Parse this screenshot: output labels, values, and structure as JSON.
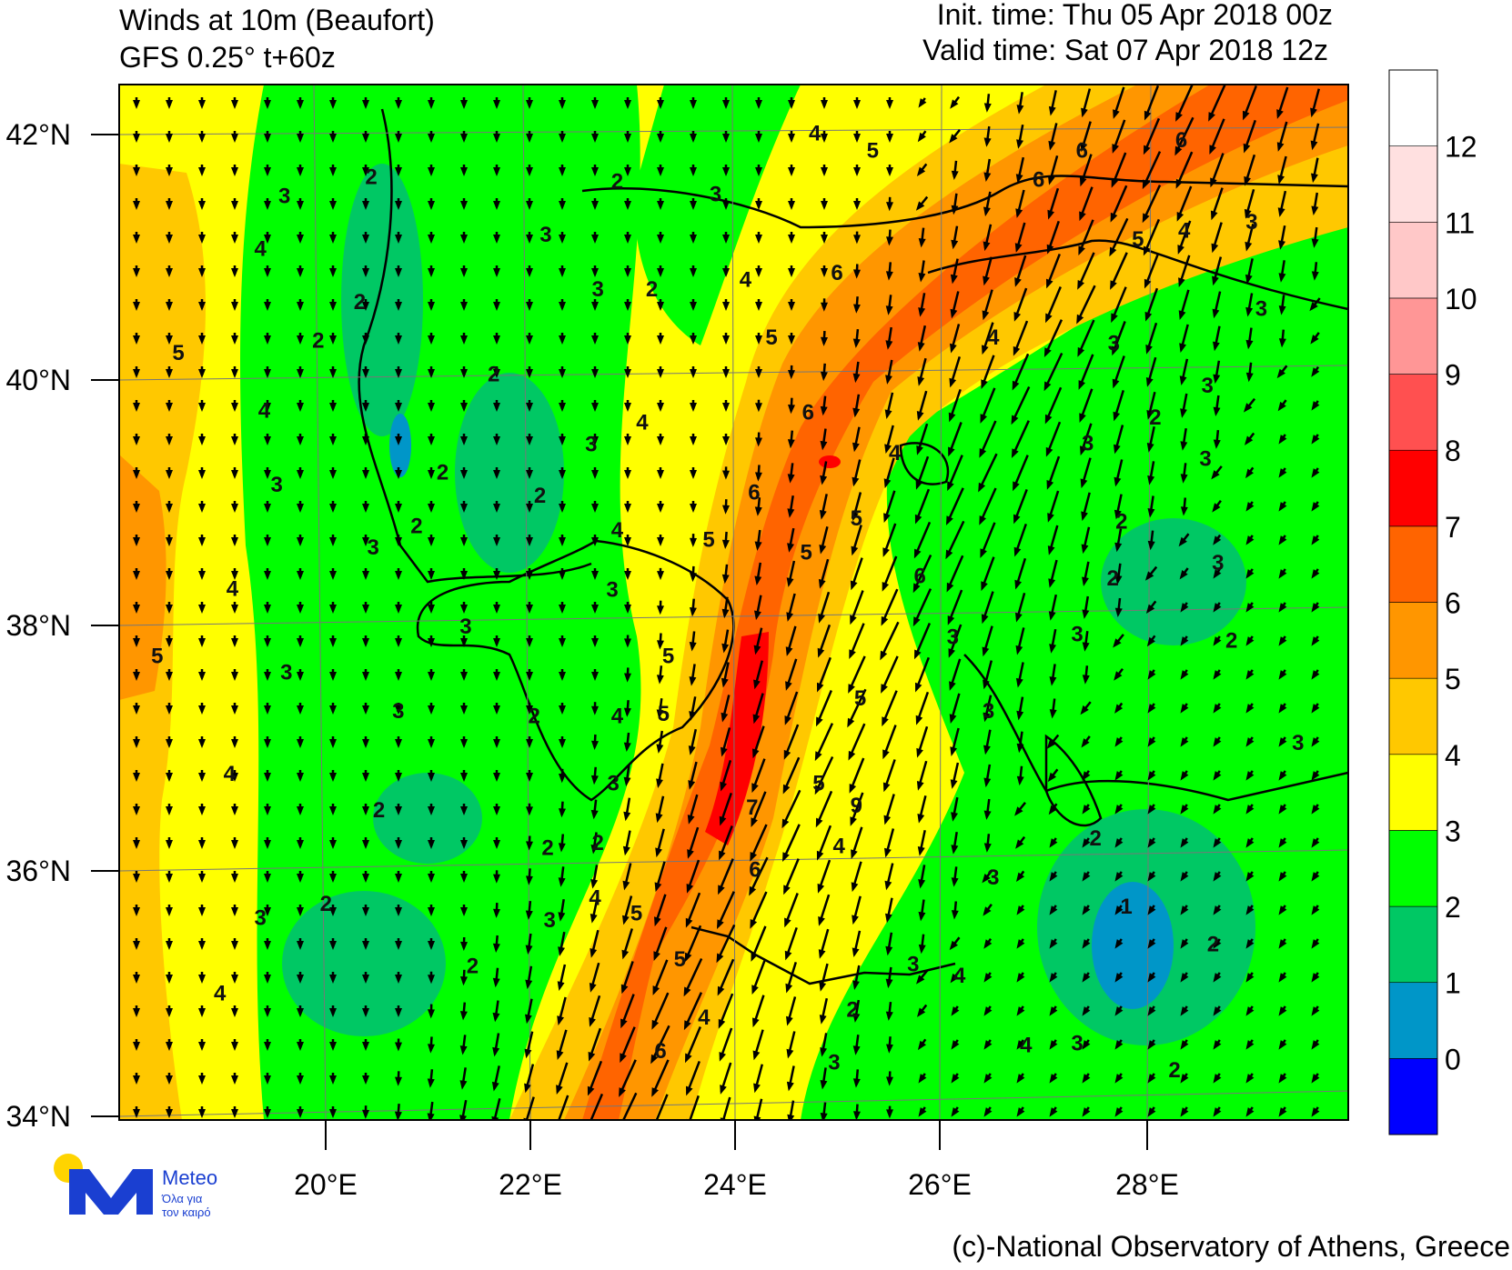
{
  "map": {
    "title": "Winds at 10m (Beaufort)",
    "subtitle": "GFS 0.25° t+60z",
    "init_time": "Init. time: Thu 05 Apr 2018 00z",
    "valid_time": "Valid time: Sat 07 Apr 2018 12z",
    "lat_ticks": [
      "42°N",
      "40°N",
      "38°N",
      "36°N",
      "34°N"
    ],
    "lon_ticks": [
      "20°E",
      "22°E",
      "24°E",
      "26°E",
      "28°E"
    ],
    "colorbar": {
      "levels": [
        {
          "label": "0",
          "color": "#0000ff"
        },
        {
          "label": "1",
          "color": "#0096c8"
        },
        {
          "label": "2",
          "color": "#00c864"
        },
        {
          "label": "3",
          "color": "#00ff00"
        },
        {
          "label": "4",
          "color": "#ffff00"
        },
        {
          "label": "5",
          "color": "#ffc800"
        },
        {
          "label": "6",
          "color": "#ff9600"
        },
        {
          "label": "7",
          "color": "#ff6400"
        },
        {
          "label": "8",
          "color": "#ff0000"
        },
        {
          "label": "9",
          "color": "#ff5050"
        },
        {
          "label": "10",
          "color": "#ff9696"
        },
        {
          "label": "11",
          "color": "#ffc8c8"
        },
        {
          "label": "12",
          "color": "#ffe0e0"
        }
      ]
    },
    "contour_labels": [
      "4",
      "5",
      "6",
      "6",
      "6",
      "2",
      "2",
      "3",
      "3",
      "3",
      "4",
      "5",
      "4",
      "3",
      "6",
      "4",
      "3",
      "2",
      "2",
      "3",
      "5",
      "4",
      "2",
      "5",
      "3",
      "2",
      "3",
      "4",
      "6",
      "4",
      "2",
      "3",
      "3",
      "4",
      "3",
      "2",
      "3",
      "2",
      "6",
      "5",
      "2",
      "2",
      "4",
      "5",
      "3",
      "5",
      "3",
      "4",
      "6",
      "2",
      "3",
      "3",
      "3",
      "3",
      "2",
      "5",
      "5",
      "3",
      "5",
      "3",
      "2",
      "4",
      "5",
      "3",
      "3",
      "4",
      "3",
      "5",
      "9",
      "7",
      "2",
      "2",
      "2",
      "2",
      "4",
      "6",
      "3",
      "4",
      "1",
      "5",
      "2",
      "3",
      "3",
      "2",
      "5",
      "3",
      "2",
      "4",
      "4",
      "2",
      "4",
      "4",
      "3",
      "6",
      "3",
      "2"
    ],
    "logo": {
      "name": "Meteo",
      "tagline_1": "Όλα για",
      "tagline_2": "τον καιρό"
    },
    "credit": "(c)-National Observatory of Athens, Greece"
  }
}
